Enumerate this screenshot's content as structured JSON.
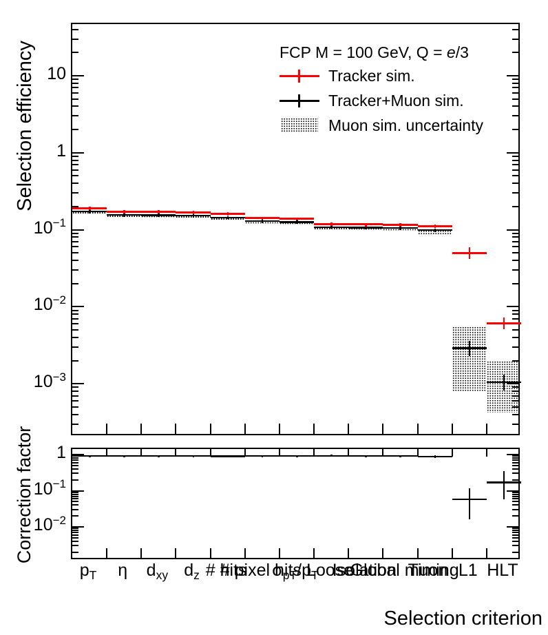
{
  "colors": {
    "tracker_sim": "#ff0000",
    "tracker_muon_sim": "#000000",
    "band_dots": "#000000",
    "background": "#ffffff"
  },
  "chart_data": [
    {
      "type": "scatter",
      "style": "cms-cutflow-efficiency-histogram",
      "ylabel": "Selection efficiency",
      "yscale": "log",
      "ylim": [
        0.00021,
        47
      ],
      "grid": false,
      "legend_position": "top-right-inside",
      "legend": {
        "title_prefix": "FCP M = 100 GeV, Q = ",
        "title_e": "e",
        "title_suffix": "/3",
        "title_plain": "FCP M = 100 GeV, Q = e/3",
        "entries": [
          {
            "label": "Tracker sim.",
            "marker": "red-cross-line"
          },
          {
            "label": "Tracker+Muon sim.",
            "marker": "black-cross-line"
          },
          {
            "label": "Muon sim. uncertainty",
            "marker": "dotted-band-box"
          }
        ]
      },
      "categories": [
        "p_T",
        "η",
        "d_xy",
        "d_z",
        "# hits",
        "# pixel hits",
        "σ_pT/p_T",
        "Loose",
        "Isolation",
        "Global muon",
        "Timing",
        "L1",
        "HLT"
      ],
      "categories_rich": [
        {
          "parts": [
            {
              "t": "p"
            },
            {
              "t": "T",
              "sub": true
            }
          ]
        },
        {
          "parts": [
            {
              "t": "η"
            }
          ]
        },
        {
          "parts": [
            {
              "t": "d"
            },
            {
              "t": "xy",
              "sub": true
            }
          ]
        },
        {
          "parts": [
            {
              "t": "d"
            },
            {
              "t": "z",
              "sub": true
            }
          ]
        },
        {
          "parts": [
            {
              "t": "# hits"
            }
          ]
        },
        {
          "parts": [
            {
              "t": "# pixel hits"
            }
          ]
        },
        {
          "parts": [
            {
              "t": "σ"
            },
            {
              "t": "pT",
              "sub": true
            },
            {
              "t": "/p"
            },
            {
              "t": "T",
              "sub": true
            }
          ]
        },
        {
          "parts": [
            {
              "t": "Loose"
            }
          ]
        },
        {
          "parts": [
            {
              "t": "Isolation"
            }
          ]
        },
        {
          "parts": [
            {
              "t": "Global muon"
            }
          ]
        },
        {
          "parts": [
            {
              "t": "Timing"
            }
          ]
        },
        {
          "parts": [
            {
              "t": "L1"
            }
          ]
        },
        {
          "parts": [
            {
              "t": "HLT"
            }
          ]
        }
      ],
      "yticks": [
        {
          "v": 10,
          "t": "10",
          "e": ""
        },
        {
          "v": 1,
          "t": "1",
          "e": ""
        },
        {
          "v": 0.1,
          "t": "10",
          "e": "−1"
        },
        {
          "v": 0.01,
          "t": "10",
          "e": "−2"
        },
        {
          "v": 0.001,
          "t": "10",
          "e": "−3"
        }
      ],
      "series": [
        {
          "name": "Tracker sim.",
          "color": "#ff0000",
          "values": [
            0.19,
            0.172,
            0.17,
            0.168,
            0.161,
            0.141,
            0.138,
            0.118,
            0.117,
            0.116,
            0.112,
            0.05,
            0.0061
          ],
          "err_lo": [
            0.181,
            0.163,
            0.162,
            0.16,
            0.153,
            0.134,
            0.131,
            0.112,
            0.111,
            0.11,
            0.106,
            0.042,
            0.0051
          ],
          "err_hi": [
            0.2,
            0.181,
            0.179,
            0.176,
            0.169,
            0.148,
            0.145,
            0.124,
            0.123,
            0.122,
            0.118,
            0.059,
            0.0072
          ]
        },
        {
          "name": "Tracker+Muon sim.",
          "color": "#000000",
          "values": [
            0.173,
            0.156,
            0.155,
            0.153,
            0.144,
            0.129,
            0.126,
            0.108,
            0.107,
            0.105,
            0.099,
            0.0029,
            0.00105
          ],
          "err_lo": [
            0.164,
            0.148,
            0.147,
            0.145,
            0.137,
            0.123,
            0.12,
            0.103,
            0.102,
            0.1,
            0.094,
            0.0023,
            0.00082
          ],
          "err_hi": [
            0.182,
            0.164,
            0.163,
            0.161,
            0.151,
            0.135,
            0.132,
            0.113,
            0.112,
            0.11,
            0.104,
            0.0036,
            0.0013
          ]
        },
        {
          "name": "Muon sim. uncertainty",
          "style": "dotted-band",
          "band_hi": [
            0.172,
            0.155,
            0.154,
            0.152,
            0.143,
            0.128,
            0.125,
            0.107,
            0.106,
            0.104,
            0.1,
            0.0056,
            0.002
          ],
          "band_lo": [
            0.16,
            0.144,
            0.143,
            0.141,
            0.133,
            0.119,
            0.116,
            0.0995,
            0.0985,
            0.097,
            0.085,
            0.00078,
            0.00042
          ]
        }
      ]
    },
    {
      "type": "scatter",
      "style": "ratio-panel",
      "ylabel": "Correction factor",
      "xlabel": "Selection criterion",
      "yscale": "log",
      "ylim": [
        0.0012,
        1.42
      ],
      "yticks": [
        {
          "v": 1,
          "t": "1",
          "e": ""
        },
        {
          "v": 0.1,
          "t": "10",
          "e": "−1"
        },
        {
          "v": 0.01,
          "t": "10",
          "e": "−2"
        }
      ],
      "series": [
        {
          "name": "Correction factor (Tracker+Muon / Tracker)",
          "color": "#000000",
          "values": [
            0.91,
            0.91,
            0.91,
            0.91,
            0.89,
            0.91,
            0.91,
            0.92,
            0.91,
            0.91,
            0.88,
            0.058,
            0.17
          ],
          "err_lo": [
            0.85,
            0.85,
            0.85,
            0.85,
            0.83,
            0.85,
            0.85,
            0.86,
            0.85,
            0.85,
            0.82,
            0.016,
            0.058
          ],
          "err_hi": [
            0.97,
            0.97,
            0.97,
            0.97,
            0.95,
            0.97,
            0.97,
            0.98,
            0.97,
            0.97,
            0.94,
            0.115,
            0.35
          ]
        }
      ]
    }
  ]
}
